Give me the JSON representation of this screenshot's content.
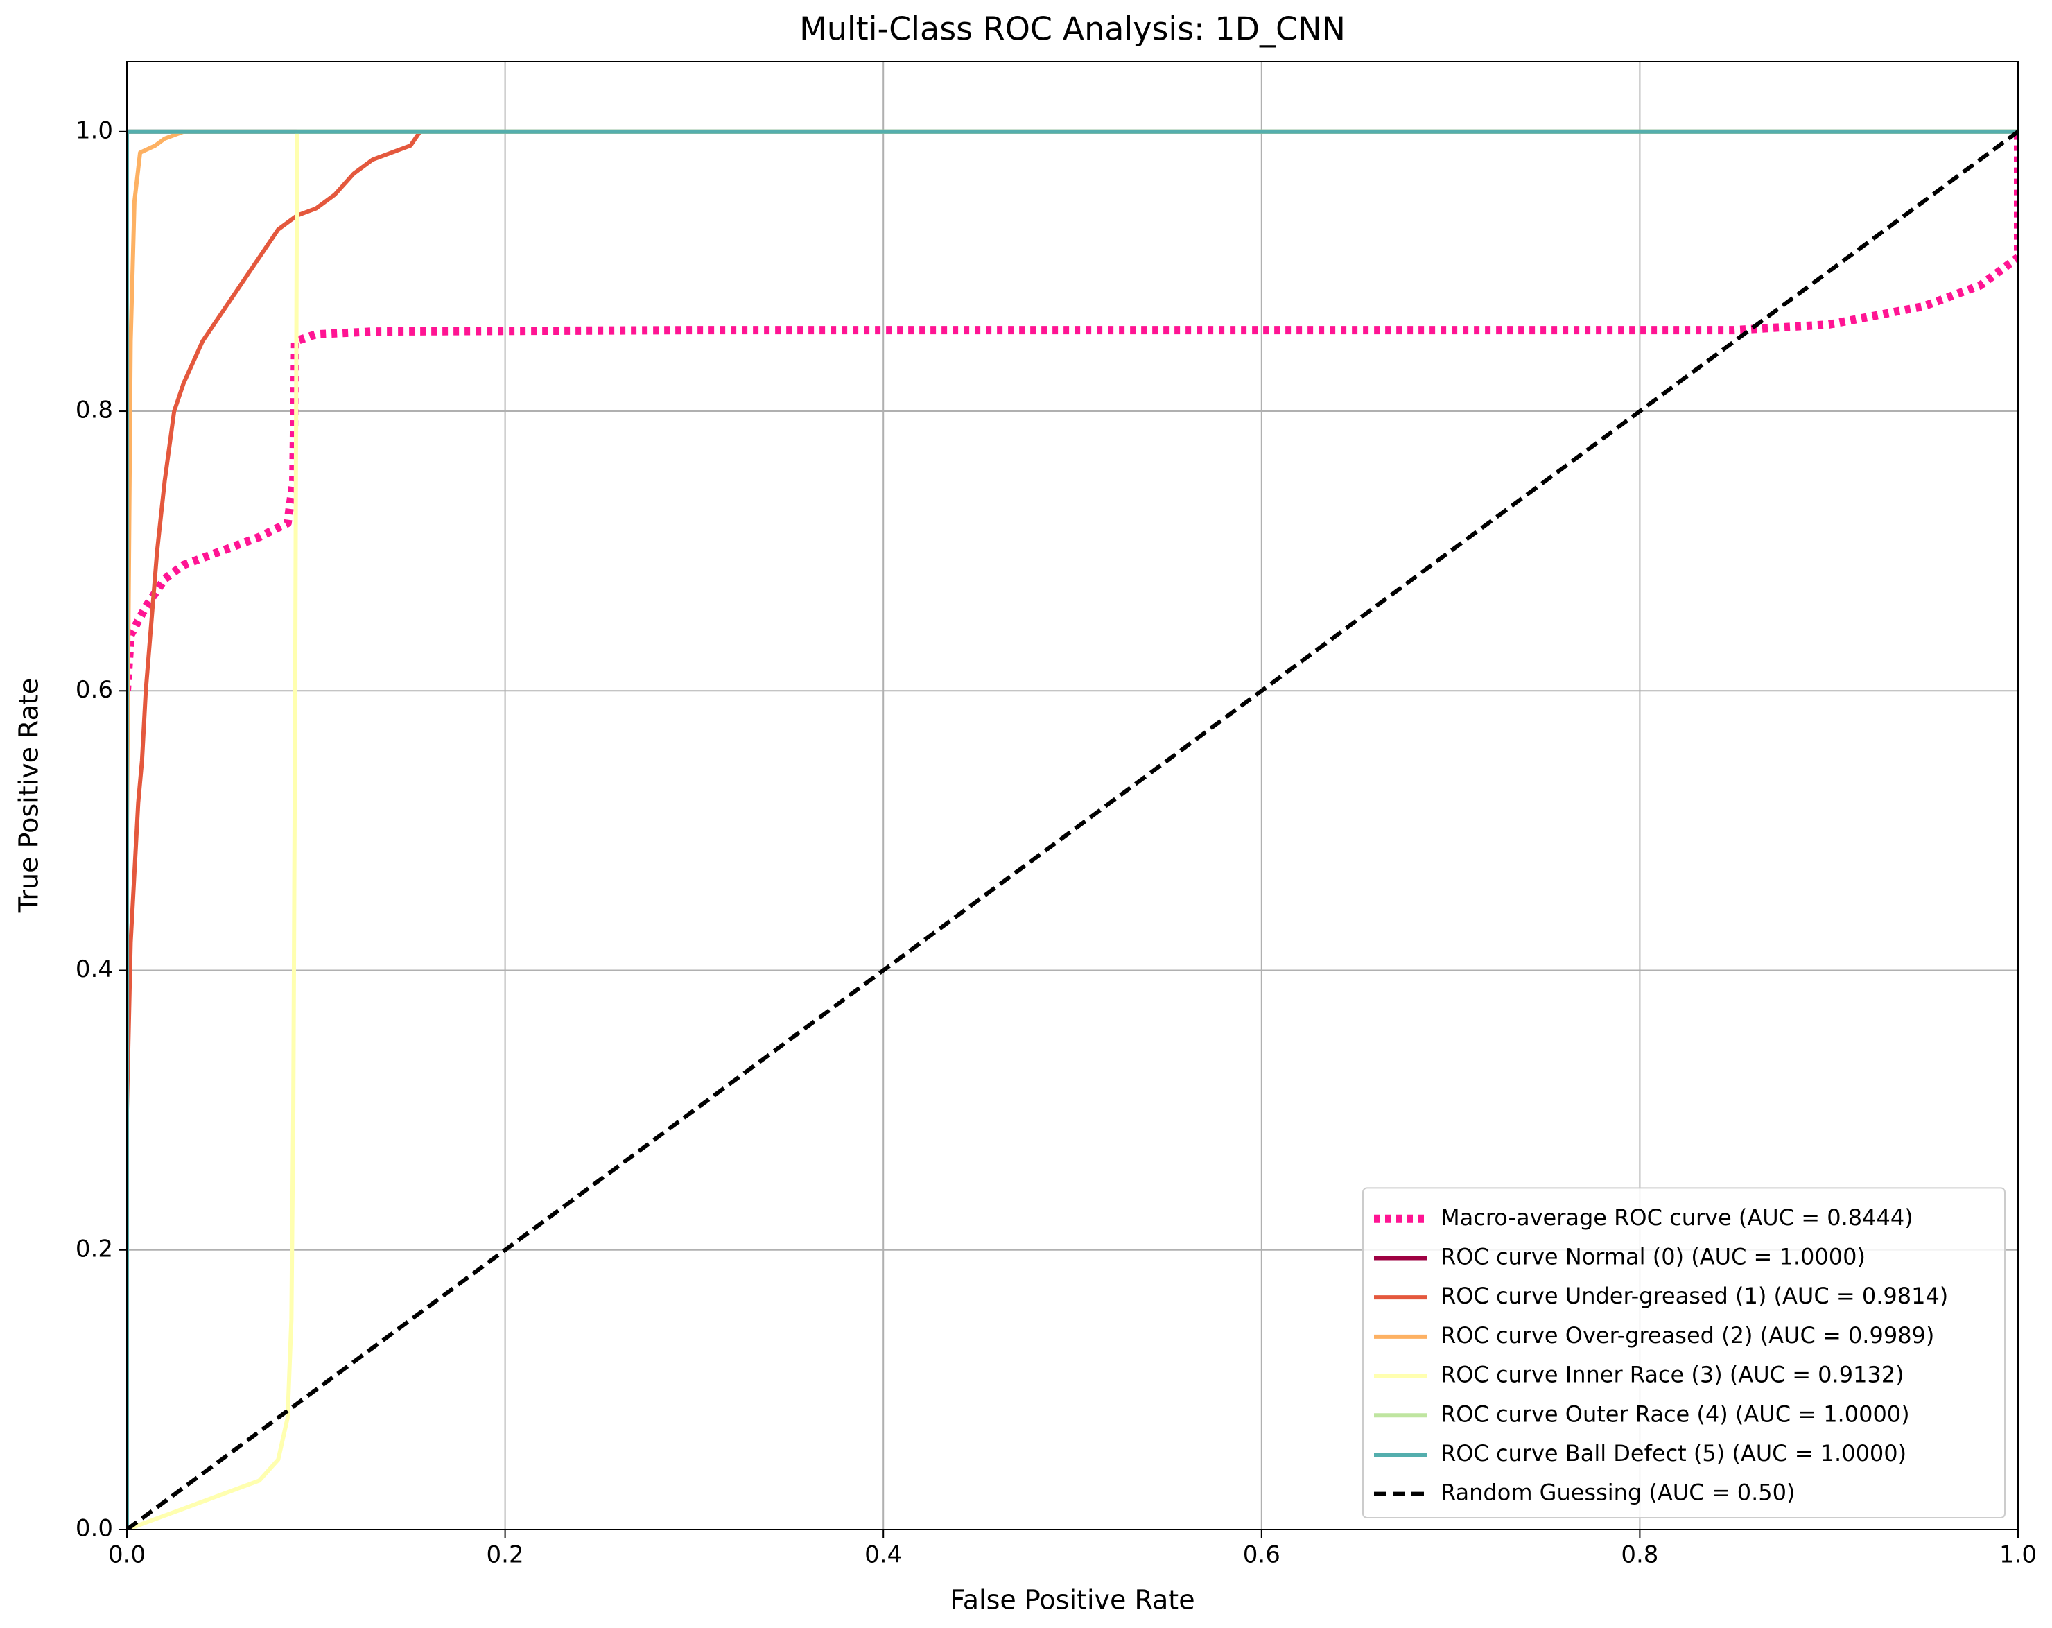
{
  "chart_data": {
    "type": "line",
    "title": "Multi-Class ROC Analysis: 1D_CNN",
    "xlabel": "False Positive Rate",
    "ylabel": "True Positive Rate",
    "xlim": [
      0,
      1
    ],
    "ylim": [
      0,
      1.05
    ],
    "xticks": [
      {
        "value": 0,
        "label": "0.0"
      },
      0.2,
      0.4,
      0.6,
      0.8,
      {
        "value": 1,
        "label": "1.0"
      }
    ],
    "yticks": [
      {
        "value": 0,
        "label": "0.0"
      },
      0.2,
      0.4,
      0.6,
      0.8,
      {
        "value": 1,
        "label": "1.0"
      }
    ],
    "grid": true,
    "legend": "lower right",
    "series": [
      {
        "name": "Macro-average ROC curve (AUC = 0.8444)",
        "color": "#ff1493",
        "linestyle": "dotted",
        "linewidth": 4,
        "x": [
          0,
          0.002,
          0.01,
          0.02,
          0.03,
          0.05,
          0.07,
          0.085,
          0.088,
          0.089,
          0.1,
          0.13,
          0.3,
          0.85,
          0.9,
          0.95,
          0.98,
          0.995,
          1.0,
          1.0
        ],
        "y": [
          0.6,
          0.64,
          0.66,
          0.68,
          0.69,
          0.7,
          0.71,
          0.72,
          0.75,
          0.85,
          0.855,
          0.857,
          0.858,
          0.858,
          0.862,
          0.875,
          0.89,
          0.905,
          0.91,
          1.0
        ]
      },
      {
        "name": "ROC curve Normal (0) (AUC = 1.0000)",
        "color": "#9e0142",
        "linestyle": "solid",
        "linewidth": 2,
        "x": [
          0,
          0,
          1
        ],
        "y": [
          0,
          1,
          1
        ]
      },
      {
        "name": "ROC curve Under-greased (1) (AUC = 0.9814)",
        "color": "#e4583d",
        "linestyle": "solid",
        "linewidth": 2,
        "x": [
          0,
          0,
          0.002,
          0.004,
          0.006,
          0.008,
          0.01,
          0.013,
          0.016,
          0.02,
          0.025,
          0.03,
          0.04,
          0.05,
          0.06,
          0.07,
          0.08,
          0.09,
          0.1,
          0.11,
          0.12,
          0.13,
          0.15,
          0.155,
          0.175,
          1
        ],
        "y": [
          0,
          0.3,
          0.42,
          0.47,
          0.52,
          0.55,
          0.6,
          0.65,
          0.7,
          0.75,
          0.8,
          0.82,
          0.85,
          0.87,
          0.89,
          0.91,
          0.93,
          0.94,
          0.945,
          0.955,
          0.97,
          0.98,
          0.99,
          1.0,
          1.0,
          1
        ]
      },
      {
        "name": "ROC curve Over-greased (2) (AUC = 0.9989)",
        "color": "#fdb163",
        "linestyle": "solid",
        "linewidth": 2,
        "x": [
          0,
          0,
          0.002,
          0.004,
          0.007,
          0.015,
          0.02,
          0.03,
          1
        ],
        "y": [
          0,
          0.5,
          0.85,
          0.95,
          0.985,
          0.99,
          0.995,
          1.0,
          1
        ]
      },
      {
        "name": "ROC curve Inner Race (3) (AUC = 0.9132)",
        "color": "#ffffb0",
        "linestyle": "solid",
        "linewidth": 2,
        "x": [
          0,
          0.01,
          0.03,
          0.05,
          0.07,
          0.08,
          0.085,
          0.087,
          0.088,
          0.089,
          0.09,
          1
        ],
        "y": [
          0,
          0.005,
          0.015,
          0.025,
          0.035,
          0.05,
          0.08,
          0.15,
          0.3,
          0.6,
          1.0,
          1
        ]
      },
      {
        "name": "ROC curve Outer Race (4) (AUC = 1.0000)",
        "color": "#bfe5a0",
        "linestyle": "solid",
        "linewidth": 2,
        "x": [
          0,
          0,
          1
        ],
        "y": [
          0,
          1,
          1
        ]
      },
      {
        "name": "ROC curve Ball Defect (5) (AUC = 1.0000)",
        "color": "#54aead",
        "linestyle": "solid",
        "linewidth": 2,
        "x": [
          0,
          0,
          1
        ],
        "y": [
          0,
          1,
          1
        ]
      },
      {
        "name": "Random Guessing (AUC = 0.50)",
        "color": "#000000",
        "linestyle": "dashed",
        "linewidth": 2,
        "x": [
          0,
          1
        ],
        "y": [
          0,
          1
        ]
      }
    ]
  }
}
